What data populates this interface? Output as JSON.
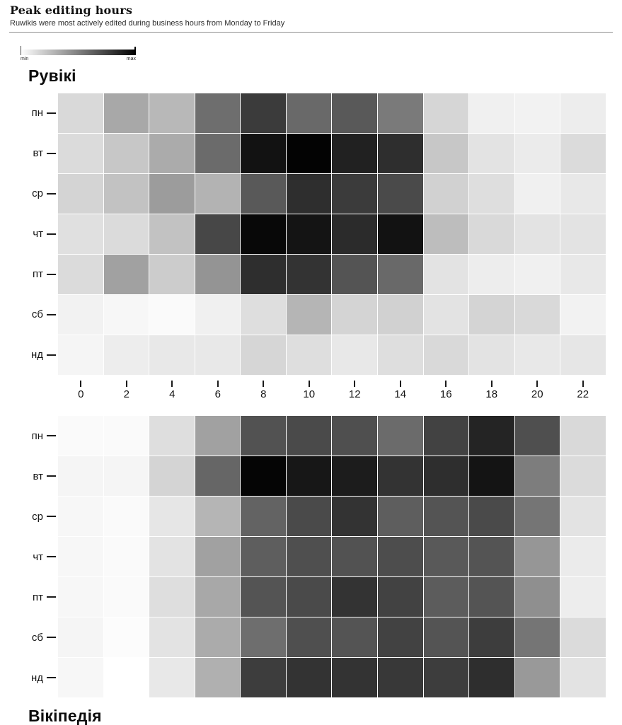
{
  "header": {
    "title": "Peak editing hours",
    "subtitle": "Ruwikis were most actively edited during business hours from Monday to Friday"
  },
  "legend": {
    "min_label": "min",
    "max_label": "max",
    "min_color": "#ffffff",
    "max_color": "#000000"
  },
  "chart_data": [
    {
      "type": "heatmap",
      "title": "Рувікі",
      "title_position": "above",
      "y_categories": [
        "пн",
        "вт",
        "ср",
        "чт",
        "пт",
        "сб",
        "нд"
      ],
      "x_tick_labels": [
        "0",
        "2",
        "4",
        "6",
        "8",
        "10",
        "12",
        "14",
        "16",
        "18",
        "20",
        "22"
      ],
      "x_hours": [
        0,
        2,
        4,
        6,
        8,
        10,
        12,
        14,
        16,
        18,
        20,
        22
      ],
      "value_range": [
        0,
        1
      ],
      "colorscale": "white-min to black-max",
      "grid": false,
      "values": [
        [
          0.15,
          0.34,
          0.28,
          0.57,
          0.77,
          0.59,
          0.65,
          0.52,
          0.16,
          0.06,
          0.05,
          0.07
        ],
        [
          0.14,
          0.22,
          0.33,
          0.58,
          0.93,
          0.99,
          0.87,
          0.82,
          0.22,
          0.11,
          0.08,
          0.14
        ],
        [
          0.17,
          0.24,
          0.39,
          0.3,
          0.65,
          0.82,
          0.77,
          0.71,
          0.18,
          0.13,
          0.06,
          0.09
        ],
        [
          0.12,
          0.14,
          0.24,
          0.72,
          0.97,
          0.92,
          0.83,
          0.93,
          0.26,
          0.15,
          0.11,
          0.11
        ],
        [
          0.14,
          0.37,
          0.2,
          0.42,
          0.82,
          0.8,
          0.67,
          0.59,
          0.11,
          0.07,
          0.06,
          0.09
        ],
        [
          0.05,
          0.03,
          0.02,
          0.06,
          0.13,
          0.29,
          0.17,
          0.18,
          0.11,
          0.17,
          0.15,
          0.05
        ],
        [
          0.04,
          0.07,
          0.09,
          0.09,
          0.16,
          0.13,
          0.09,
          0.13,
          0.15,
          0.11,
          0.09,
          0.1
        ]
      ]
    },
    {
      "type": "heatmap",
      "title": "Вікіпедія",
      "title_position": "below",
      "y_categories": [
        "пн",
        "вт",
        "ср",
        "чт",
        "пт",
        "сб",
        "нд"
      ],
      "x_tick_labels": [],
      "x_hours": [
        0,
        2,
        4,
        6,
        8,
        10,
        12,
        14,
        16,
        18,
        20,
        22
      ],
      "value_range": [
        0,
        1
      ],
      "colorscale": "white-min to black-max",
      "grid": false,
      "values": [
        [
          0.02,
          0.02,
          0.13,
          0.37,
          0.68,
          0.71,
          0.69,
          0.58,
          0.74,
          0.86,
          0.69,
          0.15
        ],
        [
          0.04,
          0.04,
          0.17,
          0.6,
          0.98,
          0.91,
          0.89,
          0.8,
          0.82,
          0.92,
          0.51,
          0.14
        ],
        [
          0.03,
          0.02,
          0.1,
          0.29,
          0.61,
          0.71,
          0.8,
          0.63,
          0.67,
          0.71,
          0.54,
          0.11
        ],
        [
          0.03,
          0.02,
          0.11,
          0.37,
          0.63,
          0.69,
          0.68,
          0.7,
          0.65,
          0.67,
          0.41,
          0.08
        ],
        [
          0.03,
          0.02,
          0.13,
          0.34,
          0.67,
          0.71,
          0.8,
          0.74,
          0.64,
          0.67,
          0.44,
          0.07
        ],
        [
          0.04,
          0.01,
          0.11,
          0.33,
          0.57,
          0.69,
          0.67,
          0.74,
          0.67,
          0.76,
          0.54,
          0.14
        ],
        [
          0.03,
          0.0,
          0.09,
          0.31,
          0.76,
          0.8,
          0.8,
          0.78,
          0.76,
          0.82,
          0.4,
          0.11
        ]
      ]
    }
  ]
}
